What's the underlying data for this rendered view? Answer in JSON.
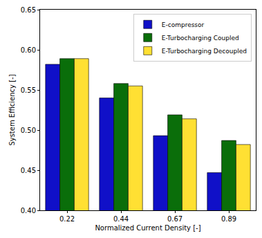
{
  "chart_data": {
    "type": "bar",
    "x_label": "Normalized Current Density [-]",
    "y_label": "System Efficiency [-]",
    "categories": [
      "0.22",
      "0.44",
      "0.67",
      "0.89"
    ],
    "series": [
      {
        "name": "E-compressor",
        "color": "#1010c8",
        "values": [
          0.582,
          0.54,
          0.493,
          0.447
        ]
      },
      {
        "name": "E-Turbocharging Coupled",
        "color": "#0a6e0a",
        "values": [
          0.589,
          0.558,
          0.519,
          0.487
        ]
      },
      {
        "name": "E-Turbocharging Decoupled",
        "color": "#ffe033",
        "values": [
          0.589,
          0.555,
          0.514,
          0.482
        ]
      }
    ],
    "ylim": [
      0.4,
      0.65
    ],
    "yticks": [
      {
        "value": 0.4,
        "label": "0.40"
      },
      {
        "value": 0.45,
        "label": "0.45"
      },
      {
        "value": 0.5,
        "label": "0.50"
      },
      {
        "value": 0.55,
        "label": "0.55"
      },
      {
        "value": 0.6,
        "label": "0.60"
      },
      {
        "value": 0.65,
        "label": "0.65"
      }
    ],
    "grid": false,
    "legend": "upper right"
  }
}
